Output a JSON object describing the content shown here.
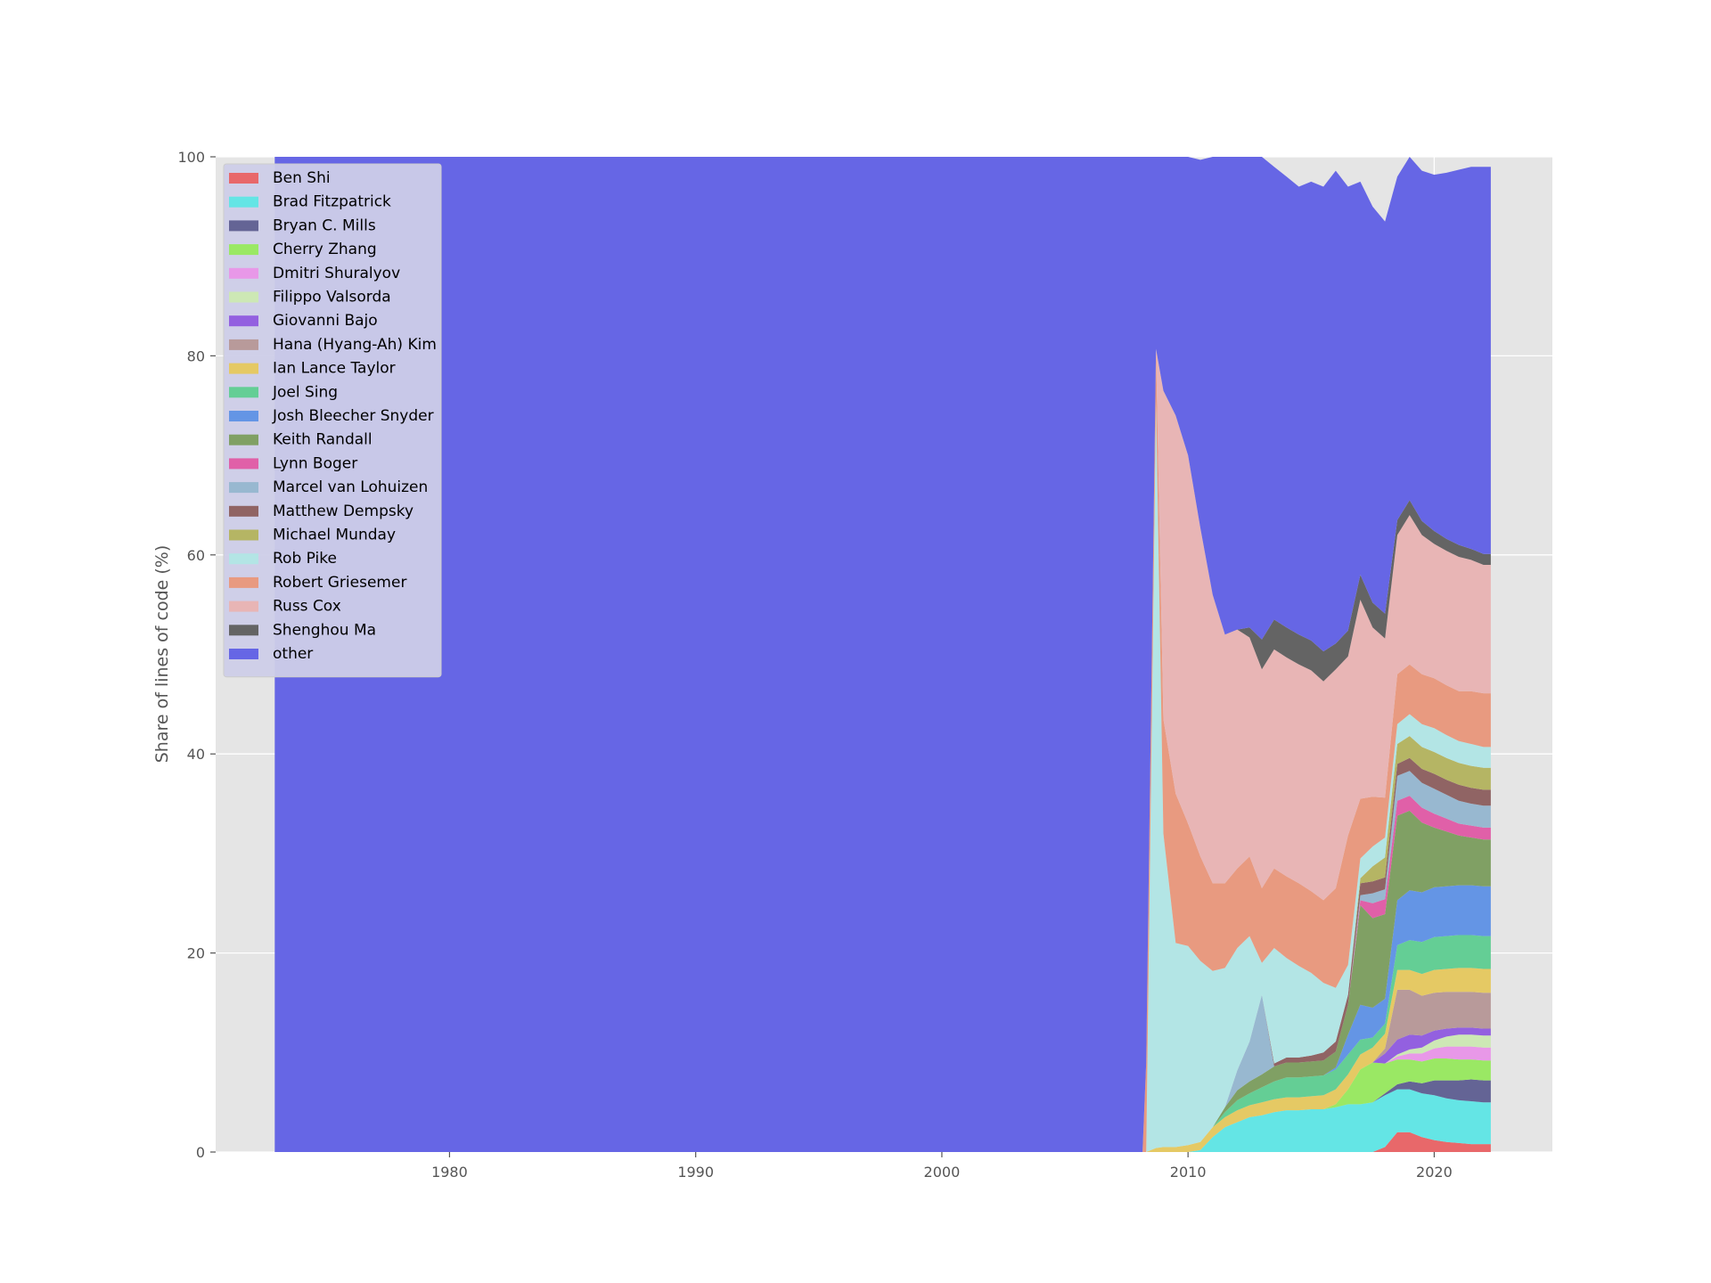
{
  "chart_data": {
    "type": "area",
    "stacked": true,
    "title": "",
    "xlabel": "",
    "ylabel": "Share of lines of code (%)",
    "xlim": [
      1970.5,
      2024.8
    ],
    "ylim": [
      0,
      100
    ],
    "xticks": [
      1980,
      1990,
      2000,
      2010,
      2020
    ],
    "yticks": [
      0,
      20,
      40,
      60,
      80,
      100
    ],
    "grid": true,
    "legend_position": "top-left",
    "x": [
      1972.9,
      2008.05,
      2008.15,
      2008.3,
      2008.7,
      2009.0,
      2009.5,
      2010.0,
      2010.5,
      2011.0,
      2011.5,
      2012.0,
      2012.5,
      2013.0,
      2013.5,
      2014.0,
      2014.5,
      2015.0,
      2015.5,
      2016.0,
      2016.5,
      2017.0,
      2017.5,
      2018.0,
      2018.5,
      2019.0,
      2019.5,
      2020.0,
      2020.5,
      2021.0,
      2021.5,
      2022.0,
      2022.3
    ],
    "series": [
      {
        "name": "Ben Shi",
        "color": "#e8686a",
        "values": [
          0,
          0,
          0,
          0,
          0,
          0,
          0,
          0,
          0,
          0,
          0,
          0,
          0,
          0,
          0,
          0,
          0,
          0,
          0,
          0,
          0,
          0,
          0,
          0.5,
          2.0,
          2.0,
          1.5,
          1.2,
          1.0,
          0.9,
          0.8,
          0.8,
          0.8
        ]
      },
      {
        "name": "Brad Fitzpatrick",
        "color": "#64e5e5",
        "values": [
          0,
          0,
          0,
          0,
          0,
          0,
          0,
          0,
          0.2,
          1.5,
          2.5,
          3.0,
          3.5,
          3.7,
          4.0,
          4.2,
          4.2,
          4.3,
          4.3,
          4.5,
          4.8,
          4.8,
          5.0,
          5.2,
          4.3,
          4.3,
          4.4,
          4.5,
          4.4,
          4.3,
          4.3,
          4.2,
          4.2
        ]
      },
      {
        "name": "Bryan C. Mills",
        "color": "#646495",
        "values": [
          0,
          0,
          0,
          0,
          0,
          0,
          0,
          0,
          0,
          0,
          0,
          0,
          0,
          0,
          0,
          0,
          0,
          0,
          0,
          0,
          0,
          0,
          0,
          0.2,
          0.5,
          0.8,
          1.0,
          1.5,
          1.8,
          2.0,
          2.2,
          2.2,
          2.2
        ]
      },
      {
        "name": "Cherry Zhang",
        "color": "#9ae864",
        "values": [
          0,
          0,
          0,
          0,
          0,
          0,
          0,
          0,
          0,
          0,
          0,
          0,
          0,
          0,
          0,
          0,
          0,
          0,
          0,
          0.3,
          1.5,
          3.5,
          4.0,
          3.0,
          2.5,
          2.2,
          2.2,
          2.2,
          2.2,
          2.1,
          2.0,
          2.0,
          2.0
        ]
      },
      {
        "name": "Dmitri Shuralyov",
        "color": "#e898e8",
        "values": [
          0,
          0,
          0,
          0,
          0,
          0,
          0,
          0,
          0,
          0,
          0,
          0,
          0,
          0,
          0,
          0,
          0,
          0,
          0,
          0,
          0,
          0,
          0,
          0,
          0.3,
          0.6,
          0.8,
          1.0,
          1.2,
          1.3,
          1.3,
          1.3,
          1.3
        ]
      },
      {
        "name": "Filippo Valsorda",
        "color": "#cde8b5",
        "values": [
          0,
          0,
          0,
          0,
          0,
          0,
          0,
          0,
          0,
          0,
          0,
          0,
          0,
          0,
          0,
          0,
          0,
          0,
          0,
          0,
          0,
          0,
          0,
          0,
          0.2,
          0.4,
          0.6,
          0.8,
          1.0,
          1.2,
          1.2,
          1.2,
          1.2
        ]
      },
      {
        "name": "Giovanni Bajo",
        "color": "#9360e0",
        "values": [
          0,
          0,
          0,
          0,
          0,
          0,
          0,
          0,
          0,
          0,
          0,
          0,
          0,
          0,
          0,
          0,
          0,
          0,
          0,
          0,
          0,
          0,
          0,
          1.0,
          1.5,
          1.5,
          1.2,
          1.0,
          0.8,
          0.7,
          0.7,
          0.7,
          0.7
        ]
      },
      {
        "name": "Hana (Hyang-Ah) Kim",
        "color": "#b89a9a",
        "values": [
          0,
          0,
          0,
          0,
          0,
          0,
          0,
          0,
          0,
          0,
          0,
          0,
          0,
          0,
          0,
          0,
          0,
          0,
          0,
          0,
          0,
          0,
          0,
          0.5,
          5.0,
          4.5,
          4.0,
          3.8,
          3.7,
          3.6,
          3.6,
          3.6,
          3.6
        ]
      },
      {
        "name": "Ian Lance Taylor",
        "color": "#e5c964",
        "values": [
          0,
          0,
          0,
          0,
          0.4,
          0.5,
          0.5,
          0.7,
          0.8,
          1.0,
          1.0,
          1.2,
          1.2,
          1.3,
          1.3,
          1.3,
          1.3,
          1.3,
          1.4,
          1.5,
          1.5,
          1.5,
          1.5,
          1.5,
          2.0,
          2.0,
          2.2,
          2.3,
          2.3,
          2.4,
          2.4,
          2.4,
          2.4
        ]
      },
      {
        "name": "Joel Sing",
        "color": "#64ce95",
        "values": [
          0,
          0,
          0,
          0,
          0,
          0,
          0,
          0,
          0,
          0,
          0.5,
          1.0,
          1.2,
          1.5,
          1.8,
          2.0,
          2.0,
          2.0,
          2.0,
          2.0,
          2.0,
          1.5,
          1.0,
          1.0,
          2.5,
          3.0,
          3.2,
          3.3,
          3.3,
          3.3,
          3.3,
          3.3,
          3.3
        ]
      },
      {
        "name": "Josh Bleecher Snyder",
        "color": "#6495e5",
        "values": [
          0,
          0,
          0,
          0,
          0,
          0,
          0,
          0,
          0,
          0,
          0,
          0,
          0,
          0,
          0,
          0,
          0,
          0,
          0,
          0.2,
          2.0,
          3.5,
          3.0,
          2.5,
          4.5,
          5.0,
          5.0,
          5.0,
          5.0,
          5.0,
          5.0,
          5.0,
          5.0
        ]
      },
      {
        "name": "Keith Randall",
        "color": "#80a064",
        "values": [
          0,
          0,
          0,
          0,
          0,
          0,
          0,
          0,
          0,
          0,
          0.5,
          1.0,
          1.2,
          1.3,
          1.5,
          1.5,
          1.5,
          1.5,
          1.5,
          1.6,
          3.0,
          10.0,
          9.0,
          8.5,
          8.5,
          8.0,
          7.0,
          6.0,
          5.5,
          5.0,
          4.8,
          4.7,
          4.7
        ]
      },
      {
        "name": "Lynn Boger",
        "color": "#e060a8",
        "values": [
          0,
          0,
          0,
          0,
          0,
          0,
          0,
          0,
          0,
          0,
          0,
          0,
          0,
          0,
          0,
          0,
          0,
          0,
          0,
          0,
          0,
          0.5,
          1.5,
          1.5,
          1.5,
          1.5,
          1.5,
          1.4,
          1.3,
          1.2,
          1.2,
          1.2,
          1.2
        ]
      },
      {
        "name": "Marcel van Lohuizen",
        "color": "#98b8d0",
        "values": [
          0,
          0,
          0,
          0,
          0,
          0,
          0,
          0,
          0,
          0,
          0,
          2.0,
          4.0,
          8.0,
          0,
          0,
          0,
          0,
          0,
          0,
          0,
          0.5,
          1.0,
          1.0,
          2.5,
          2.5,
          2.5,
          2.5,
          2.4,
          2.3,
          2.2,
          2.2,
          2.2
        ]
      },
      {
        "name": "Matthew Dempsky",
        "color": "#906464",
        "values": [
          0,
          0,
          0,
          0,
          0,
          0,
          0,
          0,
          0,
          0,
          0,
          0,
          0,
          0,
          0.3,
          0.5,
          0.5,
          0.6,
          0.8,
          1.0,
          1.0,
          1.2,
          1.2,
          1.2,
          1.2,
          1.3,
          1.4,
          1.5,
          1.5,
          1.6,
          1.6,
          1.6,
          1.6
        ]
      },
      {
        "name": "Michael Munday",
        "color": "#b5b564",
        "values": [
          0,
          0,
          0,
          0,
          0,
          0,
          0,
          0,
          0,
          0,
          0,
          0,
          0,
          0,
          0,
          0,
          0,
          0,
          0,
          0,
          0,
          0.5,
          1.5,
          2.0,
          2.0,
          2.2,
          2.2,
          2.2,
          2.2,
          2.2,
          2.2,
          2.2,
          2.2
        ]
      },
      {
        "name": "Rob Pike",
        "color": "#b3e5e5",
        "values": [
          0,
          0,
          0,
          0,
          75.0,
          31.5,
          20.5,
          20.0,
          18.2,
          15.7,
          14.0,
          12.3,
          10.6,
          3.2,
          11.6,
          10.0,
          9.2,
          8.3,
          7.0,
          5.4,
          3.0,
          2.0,
          2.0,
          2.0,
          2.0,
          2.2,
          2.3,
          2.4,
          2.3,
          2.2,
          2.2,
          2.1,
          2.1
        ]
      },
      {
        "name": "Robert Griesemer",
        "color": "#e89a80",
        "values": [
          0,
          0,
          0,
          9.0,
          5.3,
          11.5,
          15.0,
          12.3,
          10.5,
          8.8,
          8.5,
          8.0,
          8.0,
          7.5,
          8.0,
          8.2,
          8.3,
          8.2,
          8.3,
          10.0,
          13.0,
          6.0,
          5.0,
          4.0,
          5.0,
          5.0,
          5.0,
          5.0,
          5.0,
          5.0,
          5.3,
          5.4,
          5.4
        ]
      },
      {
        "name": "Russ Cox",
        "color": "#e8b5b5",
        "values": [
          0,
          0,
          0,
          0,
          0,
          33.0,
          38.0,
          37.0,
          33.0,
          29.0,
          25.0,
          24.0,
          22.0,
          22.0,
          22.0,
          22.0,
          22.0,
          22.2,
          22.0,
          22.0,
          18.0,
          20.0,
          17.0,
          16.0,
          14.0,
          15.0,
          14.0,
          13.5,
          13.5,
          13.5,
          13.2,
          12.9,
          12.9
        ]
      },
      {
        "name": "Shenghou Ma",
        "color": "#646464",
        "values": [
          0,
          0,
          0,
          0,
          0,
          0,
          0,
          0,
          0,
          0,
          0,
          0,
          1.0,
          3.0,
          3.0,
          3.0,
          3.0,
          3.0,
          3.0,
          2.6,
          2.6,
          2.5,
          2.5,
          2.5,
          1.5,
          1.5,
          1.4,
          1.3,
          1.2,
          1.2,
          1.1,
          1.1,
          1.1
        ]
      },
      {
        "name": "other",
        "color": "#6666e5",
        "values": [
          100,
          100,
          100,
          91,
          19.3,
          23.5,
          26.0,
          30.0,
          37.0,
          44.0,
          48.0,
          47.5,
          48.3,
          48.5,
          45.5,
          45.3,
          45.0,
          46.1,
          46.7,
          47.5,
          44.6,
          39.5,
          39.8,
          39.4,
          34.5,
          34.5,
          35.2,
          35.8,
          36.8,
          37.7,
          38.4,
          38.9,
          38.9
        ]
      }
    ]
  }
}
